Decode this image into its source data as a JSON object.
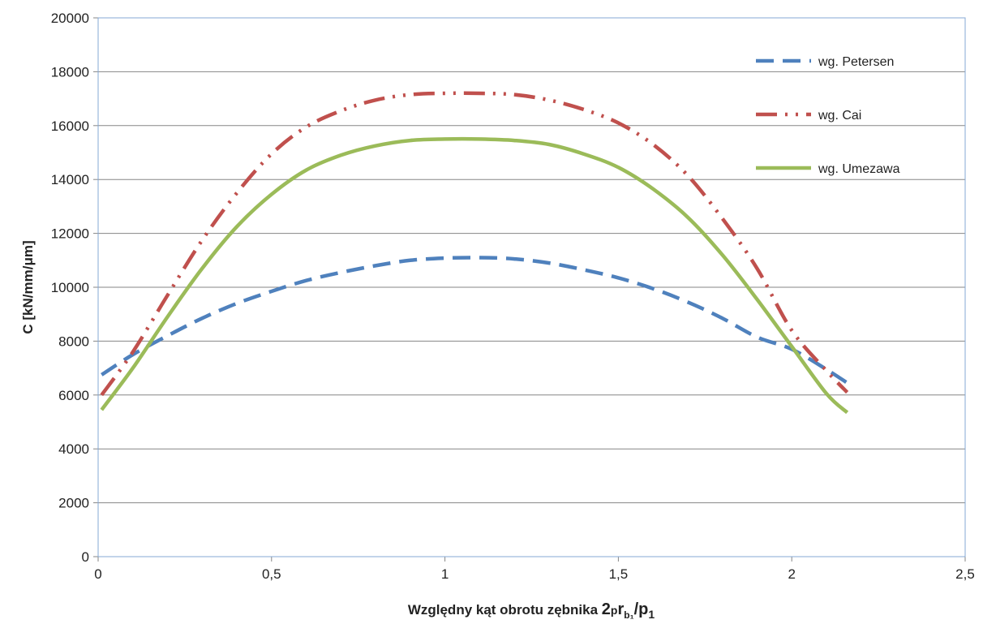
{
  "chart_data": {
    "type": "line",
    "title": "",
    "xlabel": "Względny kąt obrotu zębnika 2prb1/p1",
    "xlabel_parts": {
      "main": "Względny kąt obrotu zębnika ",
      "two": "2",
      "p": "p",
      "r": "r",
      "sub_b1": "b₁",
      "slash_p": "/p",
      "sub_1": "1"
    },
    "ylabel": "C [kN/mm/μm]",
    "xlim": [
      0,
      2.5
    ],
    "ylim": [
      0,
      20000
    ],
    "x_ticks": [
      "0",
      "0,5",
      "1",
      "1,5",
      "2",
      "2,5"
    ],
    "y_ticks": [
      "0",
      "2000",
      "4000",
      "6000",
      "8000",
      "10000",
      "12000",
      "14000",
      "16000",
      "18000",
      "20000"
    ],
    "grid": "horizontal",
    "legend_position": "top-right",
    "series": [
      {
        "name": "wg. Petersen",
        "color": "#4F81BD",
        "style": "dashed",
        "x": [
          0.01,
          0.1,
          0.2,
          0.3,
          0.4,
          0.5,
          0.6,
          0.7,
          0.8,
          0.9,
          1.0,
          1.1,
          1.2,
          1.3,
          1.4,
          1.5,
          1.6,
          1.7,
          1.8,
          1.9,
          2.0,
          2.1,
          2.16
        ],
        "y": [
          6750,
          7500,
          8200,
          8850,
          9400,
          9850,
          10250,
          10550,
          10800,
          11000,
          11080,
          11100,
          11050,
          10900,
          10650,
          10350,
          9950,
          9450,
          8850,
          8150,
          7700,
          6950,
          6450
        ]
      },
      {
        "name": "wg. Cai",
        "color": "#C0504D",
        "style": "dash-dot-dot",
        "x": [
          0.01,
          0.1,
          0.2,
          0.3,
          0.4,
          0.5,
          0.6,
          0.7,
          0.8,
          0.9,
          1.0,
          1.1,
          1.2,
          1.3,
          1.4,
          1.5,
          1.6,
          1.7,
          1.8,
          1.9,
          2.0,
          2.1,
          2.16
        ],
        "y": [
          6000,
          7600,
          9700,
          11750,
          13500,
          14950,
          15950,
          16550,
          16950,
          17150,
          17200,
          17200,
          17150,
          16950,
          16600,
          16100,
          15300,
          14150,
          12550,
          10700,
          8400,
          6900,
          6100
        ]
      },
      {
        "name": "wg. Umezawa",
        "color": "#9BBB59",
        "style": "solid",
        "x": [
          0.01,
          0.1,
          0.2,
          0.3,
          0.4,
          0.5,
          0.6,
          0.7,
          0.8,
          0.9,
          1.0,
          1.1,
          1.2,
          1.3,
          1.4,
          1.5,
          1.6,
          1.7,
          1.8,
          1.9,
          2.0,
          2.1,
          2.16
        ],
        "y": [
          5450,
          7000,
          8900,
          10700,
          12250,
          13450,
          14350,
          14900,
          15250,
          15450,
          15500,
          15500,
          15450,
          15300,
          14950,
          14450,
          13650,
          12600,
          11200,
          9550,
          7800,
          6050,
          5350
        ]
      }
    ]
  }
}
